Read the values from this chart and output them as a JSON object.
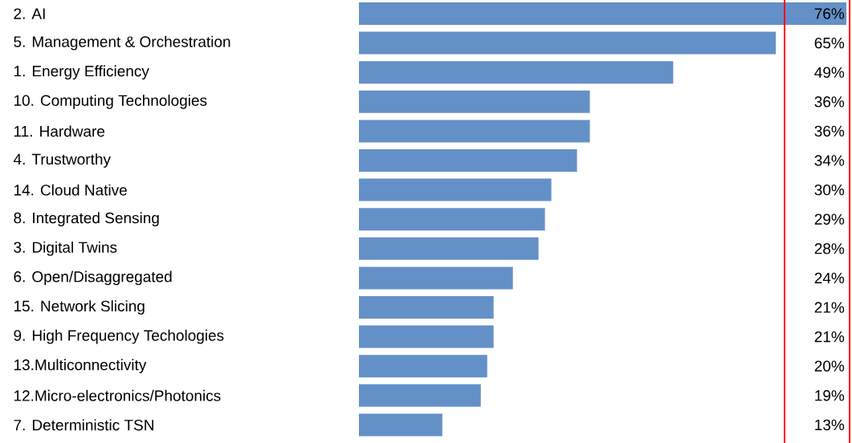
{
  "chart_data": {
    "type": "bar",
    "orientation": "horizontal",
    "categories": [
      "2. AI",
      "5. Management & Orchestration",
      "1. Energy Efficiency",
      "10. Computing Technologies",
      "11. Hardware",
      "4. Trustworthy",
      "14. Cloud Native",
      "8. Integrated Sensing",
      "3. Digital Twins",
      "6. Open/Disaggregated",
      "15. Network Slicing",
      "9. High Frequency Techologies",
      "13.Multiconnectivity",
      "12.Micro-electronics/Photonics",
      "7. Deterministic TSN"
    ],
    "values": [
      76,
      65,
      49,
      36,
      36,
      34,
      30,
      29,
      28,
      24,
      21,
      21,
      20,
      19,
      13
    ],
    "value_labels": [
      "76%",
      "65%",
      "49%",
      "36%",
      "36%",
      "34%",
      "30%",
      "29%",
      "28%",
      "24%",
      "21%",
      "21%",
      "20%",
      "19%",
      "13%"
    ],
    "color": "#6490c8"
  }
}
